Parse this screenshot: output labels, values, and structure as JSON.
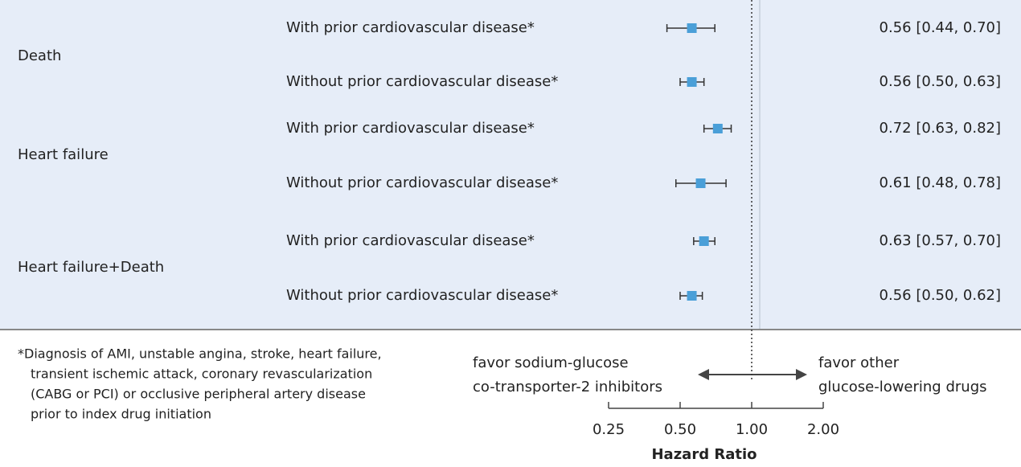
{
  "chart_data": {
    "type": "forest",
    "groups": [
      "Death",
      "Heart failure",
      "Heart failure+Death"
    ],
    "categories": [
      "With prior cardiovascular disease*",
      "Without prior cardiovascular disease*",
      "With prior cardiovascular disease*",
      "Without prior cardiovascular disease*",
      "With prior cardiovascular disease*",
      "Without prior cardiovascular disease*"
    ],
    "estimates": [
      0.56,
      0.56,
      0.72,
      0.61,
      0.63,
      0.56
    ],
    "lower": [
      0.44,
      0.5,
      0.63,
      0.48,
      0.57,
      0.5
    ],
    "upper": [
      0.7,
      0.63,
      0.82,
      0.78,
      0.7,
      0.62
    ],
    "value_labels": [
      "0.56 [0.44, 0.70]",
      "0.56 [0.50, 0.63]",
      "0.72 [0.63, 0.82]",
      "0.61 [0.48, 0.78]",
      "0.63 [0.57, 0.70]",
      "0.56 [0.50, 0.62]"
    ],
    "color": "#4a9fd8",
    "log_scale": true,
    "xlim": [
      0.25,
      2
    ],
    "xticks": [
      {
        "value": 0.25,
        "label": "0.25"
      },
      {
        "value": 0.5,
        "label": "0.50"
      },
      {
        "value": 1,
        "label": "1.00"
      },
      {
        "value": 2,
        "label": "2.00"
      }
    ],
    "reference_line": 1,
    "xlabel": "Hazard Ratio",
    "left_annotation": [
      "favor sodium-glucose",
      "co-transporter-2 inhibitors"
    ],
    "right_annotation": [
      "favor other",
      "glucose-lowering drugs"
    ],
    "footnote": [
      "*Diagnosis of AMI, unstable angina, stroke, heart failure,",
      "transient ischemic attack, coronary revascularization",
      "(CABG or PCI) or occlusive peripheral artery disease",
      "prior to index drug initiation"
    ]
  }
}
